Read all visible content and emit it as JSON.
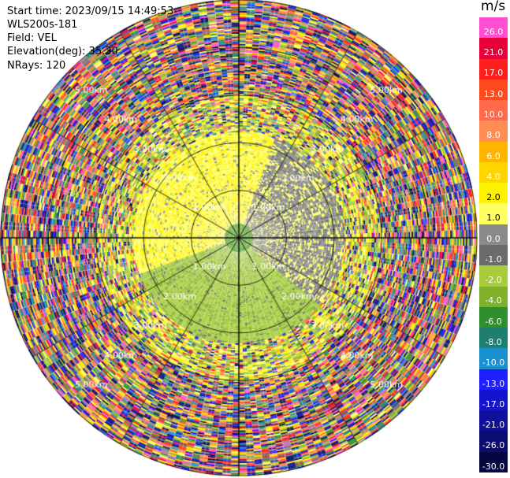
{
  "header": {
    "start_time": "Start time: 2023/09/15 14:49:53",
    "instrument": "WLS200s-181",
    "field": "Field: VEL",
    "elevation": "Elevation(deg): 35.30",
    "nrays": "NRays: 120"
  },
  "colorbar": {
    "unit": "m/s",
    "levels": [
      {
        "label": "26.0",
        "color": "#ff4fd0"
      },
      {
        "label": "21.0",
        "color": "#e8003a"
      },
      {
        "label": "17.0",
        "color": "#ff1e1e"
      },
      {
        "label": "13.0",
        "color": "#ff4a20"
      },
      {
        "label": "10.0",
        "color": "#ff6a4a"
      },
      {
        "label": "8.0",
        "color": "#ff8d55"
      },
      {
        "label": "6.0",
        "color": "#ffb400"
      },
      {
        "label": "4.0",
        "color": "#ffd500"
      },
      {
        "label": "2.0",
        "color": "#fff200"
      },
      {
        "label": "1.0",
        "color": "#ffff60"
      },
      {
        "label": "0.0",
        "color": "#8a8a8a"
      },
      {
        "label": "-1.0",
        "color": "#6b6b6b"
      },
      {
        "label": "-2.0",
        "color": "#a6cc3a"
      },
      {
        "label": "-4.0",
        "color": "#7fb02a"
      },
      {
        "label": "-6.0",
        "color": "#2f8f2f"
      },
      {
        "label": "-8.0",
        "color": "#1f7f6f"
      },
      {
        "label": "-10.0",
        "color": "#1a8fd0"
      },
      {
        "label": "-13.0",
        "color": "#1f1fff"
      },
      {
        "label": "-17.0",
        "color": "#1414cf"
      },
      {
        "label": "-21.0",
        "color": "#10109a"
      },
      {
        "label": "-26.0",
        "color": "#0b0b70"
      },
      {
        "label": "-30.0",
        "color": "#060640"
      }
    ]
  },
  "chart_data": {
    "type": "heatmap",
    "title": "",
    "field": "VEL",
    "units": "m/s",
    "nrays": 120,
    "elevation_deg": 35.3,
    "range_ring_labels": [
      "1.00km",
      "2.00km",
      "3.00km",
      "4.00km",
      "5.00km"
    ],
    "range_rings_km": [
      1,
      2,
      3,
      4,
      5
    ],
    "max_range_km": 5.0,
    "spoke_angles_deg": [
      0,
      30,
      60,
      90,
      120,
      150,
      180,
      210,
      240,
      270,
      300,
      330
    ],
    "velocity_regions": [
      {
        "range_km": [
          0.0,
          0.3
        ],
        "velocity_ms": -5.0,
        "description": "near-radar mixed"
      },
      {
        "range_km": [
          0.3,
          2.2
        ],
        "azimuth_deg": [
          250,
          20
        ],
        "velocity_ms": 1.5
      },
      {
        "range_km": [
          0.3,
          2.2
        ],
        "azimuth_deg": [
          20,
          130
        ],
        "velocity_ms": 0.0
      },
      {
        "range_km": [
          0.3,
          2.2
        ],
        "azimuth_deg": [
          130,
          250
        ],
        "velocity_ms": -2.5
      },
      {
        "range_km": [
          2.2,
          3.0
        ],
        "velocity_ms": null,
        "description": "mixed signal"
      },
      {
        "range_km": [
          3.0,
          5.0
        ],
        "velocity_ms": null,
        "description": "noise"
      }
    ]
  }
}
